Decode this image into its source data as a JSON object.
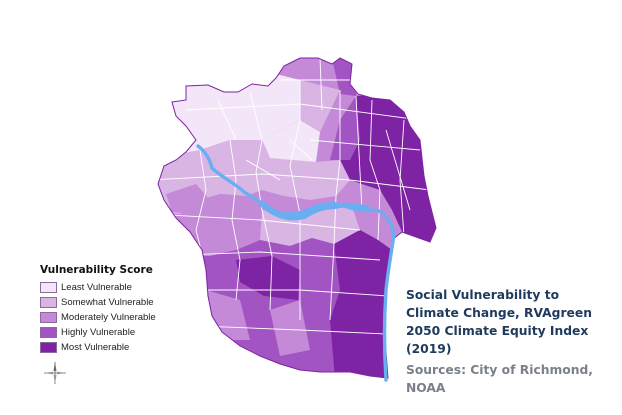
{
  "legend": {
    "title": "Vulnerability Score",
    "items": [
      {
        "label": "Least Vulnerable",
        "color": "#f3e6f8"
      },
      {
        "label": "Somewhat Vulnerable",
        "color": "#d9b5e4"
      },
      {
        "label": "Moderately Vulnerable",
        "color": "#c48ad8"
      },
      {
        "label": "Highly Vulnerable",
        "color": "#a255c2"
      },
      {
        "label": "Most Vulnerable",
        "color": "#7d23a3"
      }
    ]
  },
  "caption": {
    "title": "Social Vulnerability to Climate Change, RVAgreen 2050 Climate Equity Index (2019)",
    "sources": "Sources: City of Richmond, NOAA"
  },
  "colors": {
    "river": "#6aaef2",
    "boundary": "#ffffff"
  }
}
